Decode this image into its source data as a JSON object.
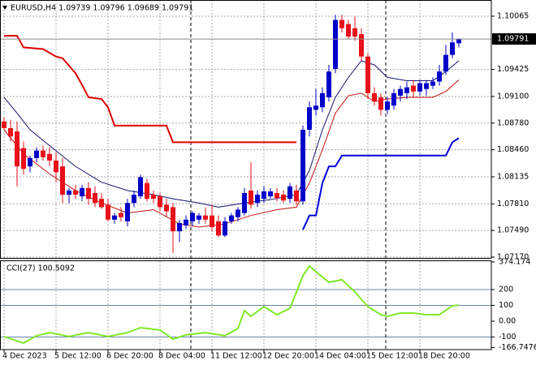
{
  "chart_data": [
    {
      "type": "candlestick",
      "title": "EURUSD,H4  1.09739 1.09796 1.09689 1.09791",
      "categories": [
        "4 Dec 2023",
        null,
        null,
        null,
        null,
        null,
        null,
        null,
        "5 Dec 12:00",
        null,
        null,
        null,
        null,
        null,
        null,
        null,
        "6 Dec 20:00",
        null,
        null,
        null,
        null,
        null,
        null,
        null,
        "8 Dec 04:00",
        null,
        null,
        null,
        null,
        null,
        null,
        null,
        "11 Dec 12:00",
        null,
        null,
        null,
        null,
        null,
        null,
        null,
        "12 Dec 20:00",
        null,
        null,
        null,
        null,
        null,
        null,
        null,
        "14 Dec 04:00",
        null,
        null,
        null,
        null,
        null,
        null,
        null,
        "15 Dec 12:00",
        null,
        null,
        null,
        null,
        null,
        null,
        null,
        "18 Dec 20:00",
        null,
        null,
        null,
        null,
        null,
        null
      ],
      "open": [
        1.088,
        1.0872,
        1.0868,
        1.0848,
        1.0826,
        1.0836,
        1.0845,
        1.0841,
        1.0833,
        1.0826,
        1.0792,
        1.0797,
        1.079,
        1.08,
        1.0794,
        1.0787,
        1.078,
        1.0762,
        1.077,
        1.076,
        1.0782,
        1.079,
        1.0806,
        1.0792,
        1.079,
        1.078,
        1.0777,
        1.0748,
        1.0755,
        1.076,
        1.0762,
        1.0767,
        1.0767,
        1.076,
        1.0743,
        1.076,
        1.0765,
        1.077,
        1.0797,
        1.0782,
        1.0787,
        1.079,
        1.0794,
        1.0792,
        1.0787,
        1.0797,
        1.0784,
        1.087,
        1.0894,
        1.0897,
        1.0909,
        1.0943,
        1.1002,
        1.0997,
        1.0992,
        1.0985,
        1.0958,
        1.0914,
        1.0909,
        1.0894,
        1.0899,
        1.0911,
        1.0914,
        1.0923,
        1.0916,
        1.0919,
        1.0923,
        1.0928,
        1.094,
        1.096,
        1.09739
      ],
      "high": [
        1.0885,
        1.0882,
        1.088,
        1.0856,
        1.0839,
        1.0849,
        1.0851,
        1.0849,
        1.0843,
        1.0836,
        1.08,
        1.0804,
        1.0804,
        1.0807,
        1.0802,
        1.0794,
        1.0787,
        1.077,
        1.0777,
        1.0787,
        1.0797,
        1.0816,
        1.0811,
        1.0797,
        1.0794,
        1.0787,
        1.0782,
        1.0762,
        1.0767,
        1.0772,
        1.077,
        1.0777,
        1.078,
        1.0767,
        1.0765,
        1.077,
        1.0777,
        1.08,
        1.0831,
        1.0797,
        1.0802,
        1.08,
        1.08,
        1.0797,
        1.0806,
        1.0804,
        1.0875,
        1.0904,
        1.0919,
        1.0921,
        1.0948,
        1.1008,
        1.1008,
        1.1002,
        1.1006,
        1.0992,
        1.0962,
        1.0921,
        1.0914,
        1.0909,
        1.0919,
        1.0923,
        1.0928,
        1.093,
        1.093,
        1.093,
        1.0933,
        1.0948,
        1.0972,
        1.0987,
        1.09796
      ],
      "low": [
        1.087,
        1.0856,
        1.0802,
        1.0816,
        1.0819,
        1.0831,
        1.0833,
        1.0826,
        1.0807,
        1.0782,
        1.0782,
        1.0787,
        1.0784,
        1.078,
        1.0777,
        1.0775,
        1.076,
        1.0757,
        1.076,
        1.0754,
        1.0777,
        1.0787,
        1.0784,
        1.0782,
        1.0772,
        1.0765,
        1.0722,
        1.0735,
        1.0751,
        1.0754,
        1.0757,
        1.0757,
        1.0748,
        1.0741,
        1.0741,
        1.0757,
        1.076,
        1.0767,
        1.0775,
        1.0777,
        1.0782,
        1.0787,
        1.0784,
        1.0782,
        1.0782,
        1.078,
        1.078,
        1.0862,
        1.0887,
        1.0891,
        1.0904,
        1.0938,
        1.0987,
        1.0979,
        1.0977,
        1.0953,
        1.0907,
        1.0899,
        1.0887,
        1.0889,
        1.0894,
        1.0904,
        1.0907,
        1.0909,
        1.0911,
        1.0911,
        1.0919,
        1.0923,
        1.0936,
        1.0956,
        1.09689
      ],
      "close": [
        1.0872,
        1.0862,
        1.0826,
        1.0823,
        1.0836,
        1.0845,
        1.0837,
        1.0833,
        1.0819,
        1.0792,
        1.0797,
        1.0792,
        1.08,
        1.0787,
        1.0782,
        1.0777,
        1.0762,
        1.0767,
        1.0765,
        1.0782,
        1.0792,
        1.0813,
        1.0787,
        1.0787,
        1.0777,
        1.0772,
        1.0748,
        1.0758,
        1.0762,
        1.077,
        1.0767,
        1.0762,
        1.0753,
        1.0743,
        1.076,
        1.0767,
        1.0774,
        1.0794,
        1.078,
        1.0792,
        1.0796,
        1.0796,
        1.0788,
        1.0785,
        1.0802,
        1.0784,
        1.087,
        1.0897,
        1.0899,
        1.0914,
        1.094,
        1.1002,
        1.0992,
        1.0982,
        1.0982,
        1.0958,
        1.0914,
        1.0904,
        1.0894,
        1.0904,
        1.0914,
        1.0919,
        1.0921,
        1.0916,
        1.0926,
        1.0926,
        1.0928,
        1.094,
        1.096,
        1.0975,
        1.09791
      ],
      "up_color": "#0000c8",
      "down_color": "#e8101a",
      "series": [
        {
          "color": "#e00000",
          "width": 2,
          "x": [
            0,
            2,
            3,
            6,
            8,
            9,
            11,
            12,
            13,
            15,
            16,
            17,
            25,
            26,
            45
          ],
          "values": [
            1.0983,
            1.0983,
            1.0969,
            1.0967,
            1.0958,
            1.0956,
            1.0938,
            1.0924,
            1.0909,
            1.0907,
            1.0897,
            1.0875,
            1.0875,
            1.0855,
            1.0855
          ]
        },
        {
          "color": "#0000dd",
          "width": 2,
          "x": [
            46,
            47,
            48,
            49,
            50,
            51,
            52,
            68,
            69,
            70
          ],
          "values": [
            1.075,
            1.0767,
            1.0767,
            1.0806,
            1.0826,
            1.0826,
            1.0839,
            1.0839,
            1.0855,
            1.086
          ]
        },
        {
          "color": "#14146e",
          "width": 1,
          "x": [
            0,
            2,
            4,
            7,
            11,
            15,
            19,
            23,
            26,
            30,
            33,
            37,
            41,
            45,
            47,
            49,
            51,
            53,
            55,
            57,
            59,
            62,
            66,
            68,
            70
          ],
          "values": [
            1.0909,
            1.089,
            1.087,
            1.0851,
            1.0826,
            1.0807,
            1.0797,
            1.0792,
            1.0787,
            1.0782,
            1.0777,
            1.0782,
            1.0786,
            1.0792,
            1.0821,
            1.087,
            1.0909,
            1.0933,
            1.0953,
            1.0948,
            1.0933,
            1.0929,
            1.0929,
            1.094,
            1.0953
          ]
        },
        {
          "color": "#c41010",
          "width": 1,
          "x": [
            0,
            3,
            7,
            11,
            15,
            19,
            23,
            27,
            30,
            34,
            38,
            42,
            45,
            47,
            49,
            51,
            53,
            55,
            57,
            59,
            62,
            66,
            68,
            70
          ],
          "values": [
            1.087,
            1.0841,
            1.0817,
            1.0797,
            1.0782,
            1.077,
            1.0774,
            1.0757,
            1.0753,
            1.0757,
            1.0767,
            1.0774,
            1.0777,
            1.0806,
            1.0846,
            1.089,
            1.0911,
            1.0914,
            1.0904,
            1.0907,
            1.0909,
            1.0909,
            1.0916,
            1.093
          ]
        }
      ],
      "ylim": [
        1.0716,
        1.1024
      ],
      "yticks": [
        1.10065,
        1.09425,
        {
          "value": 1.091,
          "label": "1.09100"
        },
        {
          "value": 1.0878,
          "label": "1.08780"
        },
        {
          "value": 1.0846,
          "label": "1.08460"
        },
        1.08135,
        {
          "value": 1.0781,
          "label": "1.07810"
        },
        {
          "value": 1.0749,
          "label": "1.07490"
        },
        {
          "value": 1.0717,
          "label": "1.07170"
        }
      ],
      "grid": true,
      "price_label": true
    },
    {
      "type": "line",
      "title": "CCI(27) 100.5092",
      "series": [
        {
          "color": "#80e82a",
          "width": 2,
          "x": [
            0,
            3,
            5,
            7,
            10,
            13,
            16,
            19,
            21,
            24,
            26,
            28,
            31,
            34,
            36,
            37,
            38,
            40,
            42,
            44,
            46,
            47,
            48,
            50,
            52,
            54,
            56,
            58,
            59,
            61,
            63,
            65,
            67,
            69,
            70
          ],
          "values": [
            -97,
            -138,
            -92,
            -72,
            -97,
            -72,
            -97,
            -72,
            -41,
            -56,
            -113,
            -87,
            -72,
            -92,
            -46,
            67,
            31,
            92,
            41,
            82,
            287,
            349,
            313,
            246,
            262,
            185,
            92,
            41,
            31,
            51,
            51,
            41,
            41,
            97,
            100.5092
          ]
        }
      ],
      "ylim": [
        -166.7476,
        374.174
      ],
      "yticks": [
        374.174,
        200,
        100,
        {
          "value": 0,
          "label": "0.00"
        },
        -100,
        -166.7476
      ],
      "levels": [
        200,
        100,
        -100
      ],
      "level_color": "#6a86a8"
    }
  ]
}
